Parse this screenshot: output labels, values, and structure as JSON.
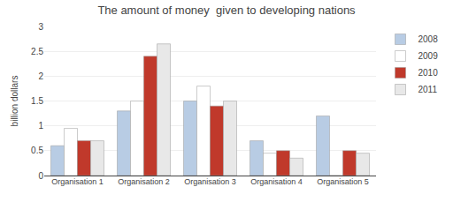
{
  "chart_data": {
    "type": "bar",
    "title": "The amount of money  given to developing nations",
    "ylabel": "billion dollars",
    "categories": [
      "Organisation 1",
      "Organisation 2",
      "Organisation 3",
      "Organisation 4",
      "Organisation 5"
    ],
    "series": [
      {
        "name": "2008",
        "color": "#b8cce4",
        "values": [
          0.6,
          1.3,
          1.5,
          0.7,
          1.2
        ]
      },
      {
        "name": "2009",
        "color": "#ffffff",
        "values": [
          0.95,
          1.5,
          1.8,
          0.45,
          0.0
        ]
      },
      {
        "name": "2010",
        "color": "#c0392b",
        "values": [
          0.7,
          2.4,
          1.4,
          0.5,
          0.5
        ]
      },
      {
        "name": "2011",
        "color": "#e8e8e8",
        "values": [
          0.7,
          2.65,
          1.5,
          0.35,
          0.45
        ]
      }
    ],
    "ylim": [
      0,
      3.0
    ],
    "yticks": [
      0,
      0.5,
      1,
      1.5,
      2,
      2.5,
      3
    ],
    "grid": true,
    "legend": "upper right"
  }
}
